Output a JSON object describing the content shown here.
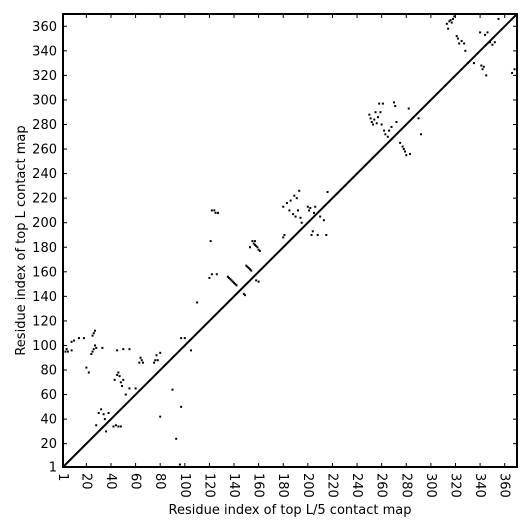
{
  "chart_data": {
    "type": "scatter",
    "title": "",
    "xlabel": "Residue index of top L/5 contact map",
    "ylabel": "Residue index of top L contact map",
    "xlim": [
      1,
      370
    ],
    "ylim": [
      1,
      370
    ],
    "xticks": [
      1,
      20,
      40,
      60,
      80,
      100,
      120,
      140,
      160,
      180,
      200,
      220,
      240,
      260,
      280,
      300,
      320,
      340,
      360
    ],
    "yticks": [
      1,
      20,
      40,
      60,
      80,
      100,
      120,
      140,
      160,
      180,
      200,
      220,
      240,
      260,
      280,
      300,
      320,
      340,
      360
    ],
    "grid": false,
    "diagonal": {
      "from": [
        1,
        1
      ],
      "to": [
        370,
        370
      ]
    },
    "series": [
      {
        "values": [
          [
            3,
            95
          ],
          [
            4,
            97
          ],
          [
            5,
            95
          ],
          [
            8,
            96
          ],
          [
            8,
            103
          ],
          [
            10,
            104
          ],
          [
            14,
            106
          ],
          [
            18,
            106
          ],
          [
            20,
            82
          ],
          [
            22,
            78
          ],
          [
            24,
            93
          ],
          [
            25,
            95
          ],
          [
            26,
            97
          ],
          [
            27,
            100
          ],
          [
            25,
            108
          ],
          [
            26,
            110
          ],
          [
            27,
            112
          ],
          [
            28,
            98
          ],
          [
            33,
            98
          ],
          [
            28,
            35
          ],
          [
            30,
            45
          ],
          [
            32,
            48
          ],
          [
            34,
            44
          ],
          [
            35,
            40
          ],
          [
            36,
            30
          ],
          [
            38,
            45
          ],
          [
            42,
            34
          ],
          [
            44,
            35
          ],
          [
            46,
            34
          ],
          [
            48,
            34
          ],
          [
            43,
            72
          ],
          [
            45,
            76
          ],
          [
            46,
            78
          ],
          [
            47,
            75
          ],
          [
            48,
            70
          ],
          [
            50,
            72
          ],
          [
            49,
            67
          ],
          [
            45,
            96
          ],
          [
            50,
            97
          ],
          [
            55,
            97
          ],
          [
            52,
            60
          ],
          [
            55,
            65
          ],
          [
            60,
            65
          ],
          [
            63,
            86
          ],
          [
            64,
            90
          ],
          [
            65,
            88
          ],
          [
            66,
            86
          ],
          [
            75,
            86
          ],
          [
            76,
            88
          ],
          [
            77,
            92
          ],
          [
            78,
            88
          ],
          [
            80,
            94
          ],
          [
            80,
            42
          ],
          [
            90,
            64
          ],
          [
            93,
            24
          ],
          [
            96,
            3
          ],
          [
            97,
            50
          ],
          [
            97,
            106
          ],
          [
            100,
            106
          ],
          [
            105,
            96
          ],
          [
            110,
            135
          ],
          [
            120,
            155
          ],
          [
            121,
            185
          ],
          [
            122,
            158
          ],
          [
            122,
            210
          ],
          [
            124,
            210
          ],
          [
            125,
            208
          ],
          [
            127,
            208
          ],
          [
            126,
            158
          ],
          [
            135,
            156
          ],
          [
            136,
            155
          ],
          [
            137,
            154
          ],
          [
            138,
            153
          ],
          [
            139,
            152
          ],
          [
            140,
            151
          ],
          [
            141,
            150
          ],
          [
            142,
            149
          ],
          [
            148,
            142
          ],
          [
            149,
            141
          ],
          [
            150,
            165
          ],
          [
            151,
            164
          ],
          [
            152,
            163
          ],
          [
            153,
            162
          ],
          [
            154,
            161
          ],
          [
            153,
            180
          ],
          [
            155,
            185
          ],
          [
            156,
            183
          ],
          [
            157,
            182
          ],
          [
            158,
            181
          ],
          [
            159,
            180
          ],
          [
            160,
            178
          ],
          [
            161,
            177
          ],
          [
            158,
            153
          ],
          [
            160,
            152
          ],
          [
            157,
            185
          ],
          [
            180,
            188
          ],
          [
            181,
            190
          ],
          [
            180,
            213
          ],
          [
            183,
            216
          ],
          [
            185,
            210
          ],
          [
            186,
            218
          ],
          [
            188,
            207
          ],
          [
            189,
            222
          ],
          [
            190,
            205
          ],
          [
            191,
            220
          ],
          [
            192,
            210
          ],
          [
            193,
            226
          ],
          [
            194,
            204
          ],
          [
            195,
            200
          ],
          [
            200,
            213
          ],
          [
            201,
            210
          ],
          [
            202,
            212
          ],
          [
            203,
            190
          ],
          [
            204,
            193
          ],
          [
            205,
            208
          ],
          [
            206,
            213
          ],
          [
            208,
            190
          ],
          [
            210,
            205
          ],
          [
            213,
            202
          ],
          [
            215,
            190
          ],
          [
            216,
            225
          ],
          [
            250,
            288
          ],
          [
            251,
            285
          ],
          [
            252,
            282
          ],
          [
            253,
            280
          ],
          [
            254,
            284
          ],
          [
            255,
            290
          ],
          [
            256,
            281
          ],
          [
            257,
            286
          ],
          [
            258,
            297
          ],
          [
            259,
            290
          ],
          [
            260,
            280
          ],
          [
            261,
            297
          ],
          [
            262,
            275
          ],
          [
            263,
            272
          ],
          [
            265,
            270
          ],
          [
            266,
            275
          ],
          [
            268,
            278
          ],
          [
            270,
            298
          ],
          [
            271,
            295
          ],
          [
            272,
            282
          ],
          [
            275,
            265
          ],
          [
            277,
            262
          ],
          [
            278,
            260
          ],
          [
            279,
            258
          ],
          [
            280,
            255
          ],
          [
            282,
            293
          ],
          [
            283,
            256
          ],
          [
            290,
            285
          ],
          [
            292,
            272
          ],
          [
            313,
            362
          ],
          [
            314,
            358
          ],
          [
            315,
            364
          ],
          [
            316,
            365
          ],
          [
            317,
            363
          ],
          [
            318,
            366
          ],
          [
            319,
            368
          ],
          [
            320,
            370
          ],
          [
            321,
            352
          ],
          [
            322,
            350
          ],
          [
            323,
            346
          ],
          [
            324,
            370
          ],
          [
            325,
            348
          ],
          [
            327,
            346
          ],
          [
            328,
            340
          ],
          [
            330,
            330
          ],
          [
            335,
            330
          ],
          [
            340,
            355
          ],
          [
            341,
            328
          ],
          [
            342,
            325
          ],
          [
            343,
            327
          ],
          [
            344,
            353
          ],
          [
            345,
            320
          ],
          [
            346,
            355
          ],
          [
            348,
            347
          ],
          [
            350,
            345
          ],
          [
            352,
            347
          ],
          [
            355,
            366
          ],
          [
            366,
            322
          ],
          [
            368,
            325
          ]
        ]
      }
    ]
  }
}
